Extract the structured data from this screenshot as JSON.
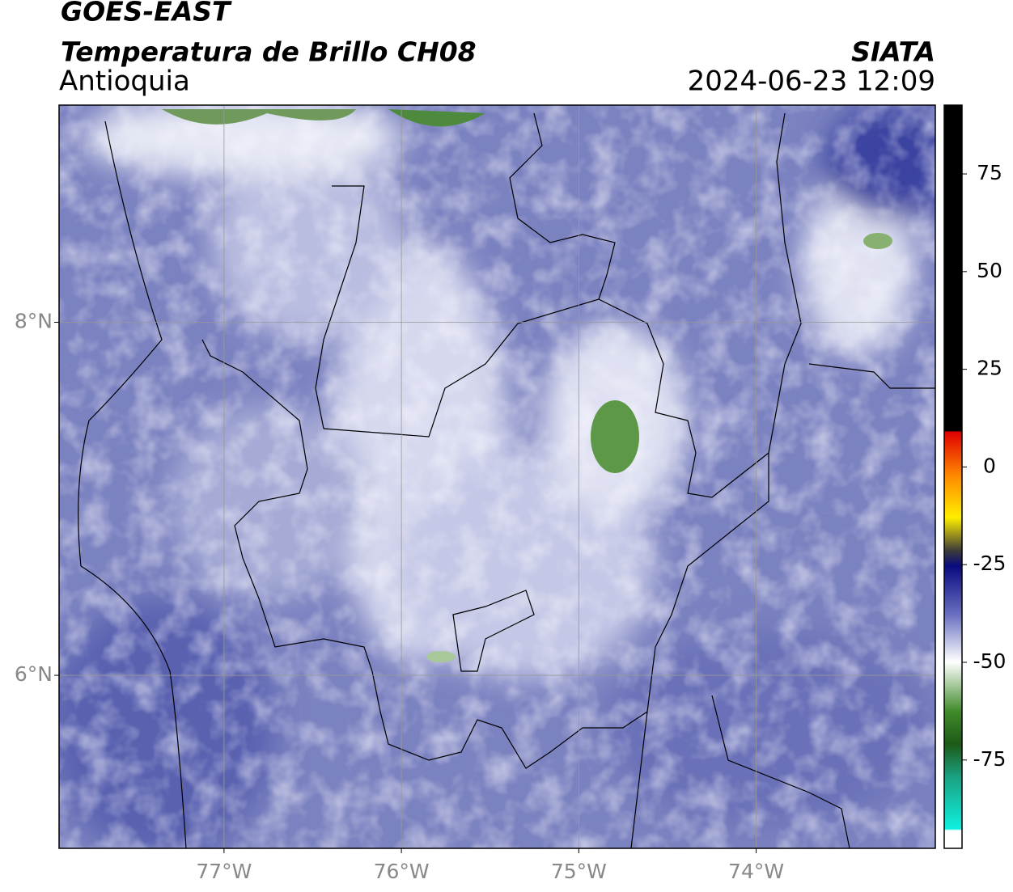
{
  "header": {
    "satellite": "GOES-EAST",
    "product": "Temperatura de Brillo CH08",
    "organization": "SIATA",
    "region": "Antioquia",
    "datetime": "2024-06-23 12:09"
  },
  "map": {
    "xlim": [
      -77.93,
      -72.99
    ],
    "ylim": [
      5.02,
      9.23
    ],
    "xticks": [
      {
        "value": -77,
        "label": "77°W"
      },
      {
        "value": -76,
        "label": "76°W"
      },
      {
        "value": -75,
        "label": "75°W"
      },
      {
        "value": -74,
        "label": "74°W"
      }
    ],
    "yticks": [
      {
        "value": 8,
        "label": "8°N"
      },
      {
        "value": 6,
        "label": "6°N"
      }
    ],
    "grid": true
  },
  "colorbar": {
    "lim": [
      -97.6,
      92.6
    ],
    "ticks": [
      75,
      50,
      25,
      0,
      -25,
      -50,
      -75
    ]
  }
}
